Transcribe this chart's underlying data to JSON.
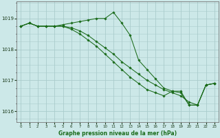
{
  "title": "Graphe pression niveau de la mer (hPa)",
  "bg_color": "#cce8e8",
  "grid_color": "#aacccc",
  "line_color": "#1a6b1a",
  "marker_color": "#1a6b1a",
  "xlim": [
    -0.5,
    23.5
  ],
  "ylim": [
    1015.65,
    1019.55
  ],
  "yticks": [
    1016,
    1017,
    1018,
    1019
  ],
  "xticks": [
    0,
    1,
    2,
    3,
    4,
    5,
    6,
    7,
    8,
    9,
    10,
    11,
    12,
    13,
    14,
    15,
    16,
    17,
    18,
    19,
    20,
    21,
    22,
    23
  ],
  "series": [
    {
      "x": [
        0,
        1,
        2,
        3,
        4,
        5,
        6,
        7,
        8,
        9,
        10,
        11,
        12,
        13,
        14,
        15,
        16,
        17,
        18,
        19,
        20,
        21,
        22,
        23
      ],
      "y": [
        1018.75,
        1018.85,
        1018.75,
        1018.75,
        1018.75,
        1018.8,
        1018.85,
        1018.9,
        1018.95,
        1019.0,
        1019.0,
        1019.2,
        1018.85,
        1018.45,
        1017.65,
        1017.35,
        1017.05,
        1016.75,
        1016.65,
        1016.6,
        1016.2,
        1016.2,
        1016.85,
        1016.9
      ]
    },
    {
      "x": [
        0,
        1,
        2,
        3,
        4,
        5,
        6,
        7,
        8,
        9,
        10,
        11,
        12,
        13,
        14,
        15,
        16,
        17,
        18,
        19,
        20,
        21,
        22,
        23
      ],
      "y": [
        1018.75,
        1018.85,
        1018.75,
        1018.75,
        1018.75,
        1018.75,
        1018.7,
        1018.6,
        1018.45,
        1018.25,
        1018.05,
        1017.85,
        1017.6,
        1017.4,
        1017.2,
        1017.0,
        1016.85,
        1016.7,
        1016.6,
        1016.5,
        1016.3,
        1016.2,
        1016.85,
        1016.9
      ]
    },
    {
      "x": [
        0,
        1,
        2,
        3,
        4,
        5,
        6,
        7,
        8,
        9,
        10,
        11,
        12,
        13,
        14,
        15,
        16,
        17,
        18,
        19,
        20,
        21,
        22,
        23
      ],
      "y": [
        1018.75,
        1018.85,
        1018.75,
        1018.75,
        1018.75,
        1018.75,
        1018.65,
        1018.5,
        1018.3,
        1018.1,
        1017.85,
        1017.6,
        1017.35,
        1017.1,
        1016.9,
        1016.7,
        1016.6,
        1016.5,
        1016.65,
        1016.65,
        1016.2,
        1016.2,
        1016.85,
        1016.9
      ]
    }
  ]
}
